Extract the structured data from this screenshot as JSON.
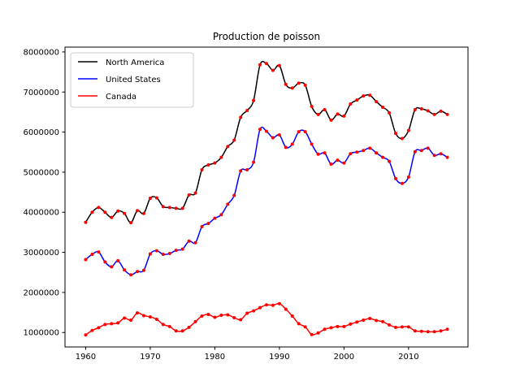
{
  "chart_data": {
    "type": "line",
    "title": "Production de poisson",
    "xlabel": "",
    "ylabel": "",
    "xlim": [
      1956.8,
      2019.2
    ],
    "ylim": [
      640000,
      8120000
    ],
    "x_ticks": [
      1960,
      1970,
      1980,
      1990,
      2000,
      2010
    ],
    "y_ticks": [
      1000000,
      2000000,
      3000000,
      4000000,
      5000000,
      6000000,
      7000000,
      8000000
    ],
    "legend_position": "top-left",
    "grid": false,
    "marker_color": "#ff0000",
    "x": [
      1960,
      1961,
      1962,
      1963,
      1964,
      1965,
      1966,
      1967,
      1968,
      1969,
      1970,
      1971,
      1972,
      1973,
      1974,
      1975,
      1976,
      1977,
      1978,
      1979,
      1980,
      1981,
      1982,
      1983,
      1984,
      1985,
      1986,
      1987,
      1988,
      1989,
      1990,
      1991,
      1992,
      1993,
      1994,
      1995,
      1996,
      1997,
      1998,
      1999,
      2000,
      2001,
      2002,
      2003,
      2004,
      2005,
      2006,
      2007,
      2008,
      2009,
      2010,
      2011,
      2012,
      2013,
      2014,
      2015,
      2016
    ],
    "series": [
      {
        "name": "North America",
        "color": "#000000",
        "values": [
          3750000,
          4000000,
          4120000,
          4000000,
          3870000,
          4030000,
          3970000,
          3740000,
          4040000,
          3970000,
          4350000,
          4360000,
          4140000,
          4120000,
          4100000,
          4100000,
          4430000,
          4480000,
          5060000,
          5180000,
          5230000,
          5370000,
          5640000,
          5800000,
          6370000,
          6540000,
          6790000,
          7680000,
          7710000,
          7540000,
          7660000,
          7190000,
          7100000,
          7220000,
          7170000,
          6640000,
          6440000,
          6560000,
          6300000,
          6450000,
          6400000,
          6700000,
          6800000,
          6900000,
          6920000,
          6760000,
          6620000,
          6480000,
          5970000,
          5840000,
          6040000,
          6560000,
          6580000,
          6530000,
          6440000,
          6520000,
          6440000
        ]
      },
      {
        "name": "United States",
        "color": "#0000ff",
        "values": [
          2820000,
          2950000,
          3010000,
          2760000,
          2640000,
          2790000,
          2560000,
          2440000,
          2520000,
          2550000,
          2960000,
          3040000,
          2950000,
          2970000,
          3050000,
          3080000,
          3280000,
          3240000,
          3640000,
          3720000,
          3850000,
          3940000,
          4200000,
          4420000,
          5030000,
          5060000,
          5250000,
          6070000,
          6020000,
          5860000,
          5930000,
          5620000,
          5700000,
          6010000,
          6010000,
          5700000,
          5450000,
          5480000,
          5200000,
          5300000,
          5230000,
          5460000,
          5500000,
          5540000,
          5600000,
          5480000,
          5370000,
          5270000,
          4840000,
          4720000,
          4880000,
          5510000,
          5540000,
          5600000,
          5420000,
          5460000,
          5370000
        ]
      },
      {
        "name": "Canada",
        "color": "#ff0000",
        "values": [
          940000,
          1050000,
          1120000,
          1200000,
          1220000,
          1240000,
          1360000,
          1310000,
          1490000,
          1420000,
          1390000,
          1330000,
          1200000,
          1150000,
          1040000,
          1040000,
          1130000,
          1270000,
          1410000,
          1450000,
          1380000,
          1430000,
          1440000,
          1370000,
          1320000,
          1480000,
          1540000,
          1620000,
          1690000,
          1680000,
          1720000,
          1580000,
          1410000,
          1220000,
          1140000,
          950000,
          990000,
          1080000,
          1120000,
          1150000,
          1150000,
          1210000,
          1260000,
          1310000,
          1350000,
          1300000,
          1270000,
          1190000,
          1130000,
          1140000,
          1140000,
          1040000,
          1030000,
          1020000,
          1020000,
          1040000,
          1080000
        ]
      }
    ]
  }
}
